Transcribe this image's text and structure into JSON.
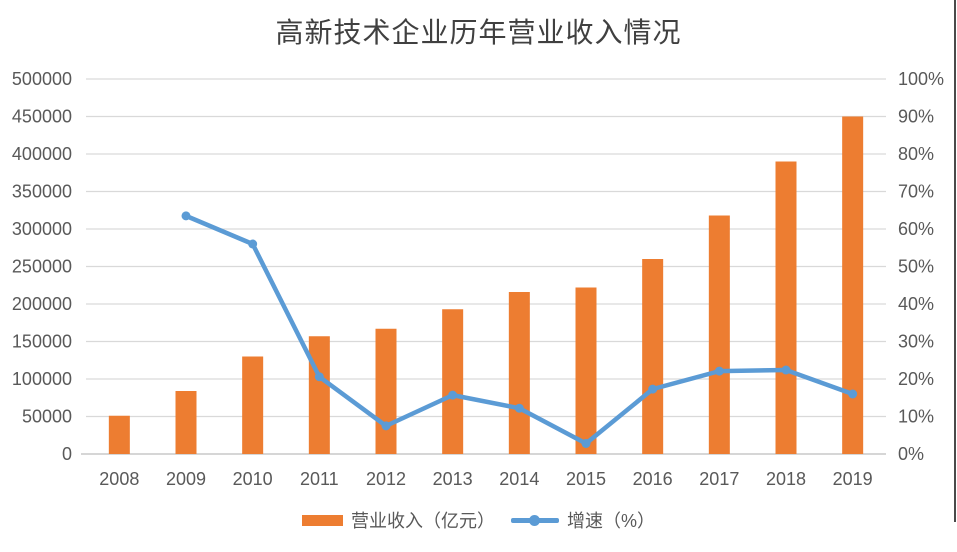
{
  "title": "高新技术企业历年营业收入情况",
  "colors": {
    "bar": "#ED7D31",
    "line": "#5B9BD5",
    "grid": "#D9D9D9",
    "axis_line": "#C9C9C9",
    "tick_text": "#595959",
    "title_text": "#404040"
  },
  "legend": {
    "items": [
      {
        "label": "营业收入（亿元）",
        "type": "bar"
      },
      {
        "label": "增速（%）",
        "type": "line"
      }
    ]
  },
  "chart_data": {
    "type": "bar",
    "subtype": "bar+line combo, dual axis",
    "title": "高新技术企业历年营业收入情况",
    "categories": [
      "2008",
      "2009",
      "2010",
      "2011",
      "2012",
      "2013",
      "2014",
      "2015",
      "2016",
      "2017",
      "2018",
      "2019"
    ],
    "series": [
      {
        "name": "营业收入（亿元）",
        "type": "bar",
        "axis": "left",
        "values": [
          51000,
          84000,
          130000,
          157000,
          167000,
          193000,
          216000,
          222000,
          260000,
          318000,
          390000,
          450000
        ]
      },
      {
        "name": "增速（%）",
        "type": "line",
        "axis": "right",
        "values": [
          null,
          63.5,
          56,
          20.6,
          7.5,
          15.7,
          12.2,
          2.8,
          17.3,
          22.1,
          22.4,
          16
        ]
      }
    ],
    "left_axis": {
      "min": 0,
      "max": 500000,
      "tick_step": 50000,
      "tick_labels": [
        "0",
        "50000",
        "100000",
        "150000",
        "200000",
        "250000",
        "300000",
        "350000",
        "400000",
        "450000",
        "500000"
      ]
    },
    "right_axis": {
      "min": 0,
      "max": 100,
      "tick_step": 10,
      "tick_labels": [
        "0%",
        "10%",
        "20%",
        "30%",
        "40%",
        "50%",
        "60%",
        "70%",
        "80%",
        "90%",
        "100%"
      ]
    },
    "grid": true,
    "legend_position": "bottom"
  }
}
